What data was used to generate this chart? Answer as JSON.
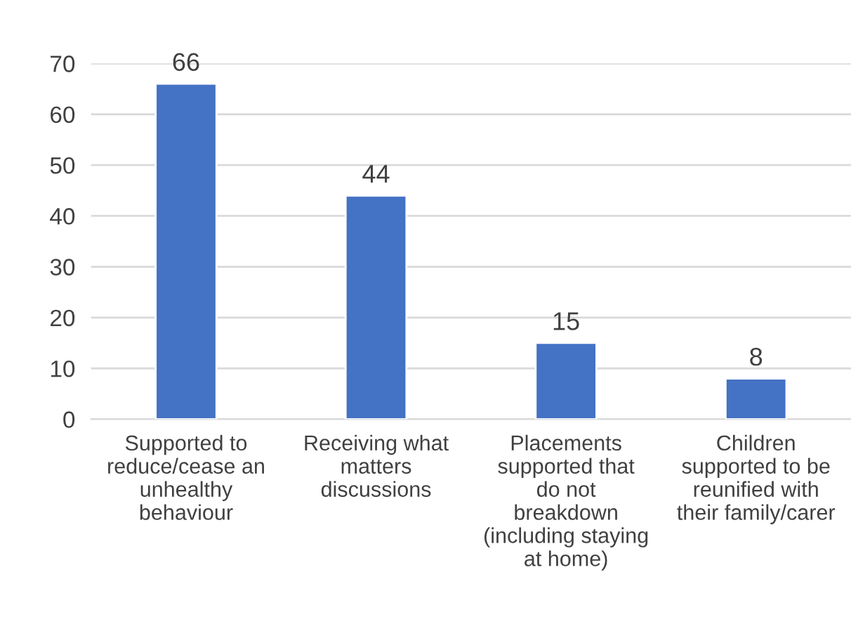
{
  "chart_data": {
    "type": "bar",
    "categories": [
      "Supported to\nreduce/cease an\nunhealthy\nbehaviour",
      "Receiving what\nmatters\ndiscussions",
      "Placements\nsupported that\ndo not\nbreakdown\n(including staying\nat home)",
      "Children\nsupported to be\nreunified with\ntheir family/carer"
    ],
    "values": [
      66,
      44,
      15,
      8
    ],
    "color": "#4472c4",
    "ylim": [
      0,
      70
    ],
    "yticks": [
      0,
      10,
      20,
      30,
      40,
      50,
      60,
      70
    ],
    "grid": "y",
    "data_labels": true,
    "legend": false
  }
}
